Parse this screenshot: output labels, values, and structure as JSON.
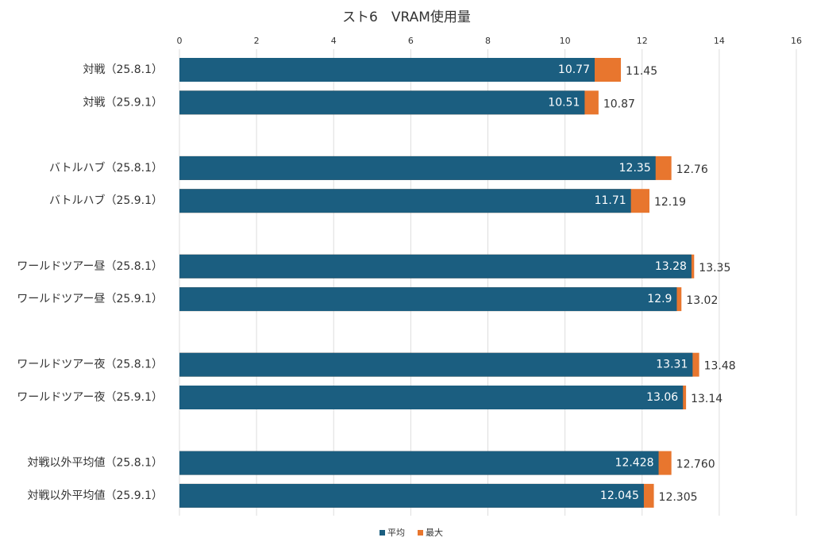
{
  "chart_data": {
    "type": "hbar-overlap",
    "title": "スト6　VRAM使用量",
    "categories": [
      "対戦（25.8.1）",
      "対戦（25.9.1）",
      null,
      "バトルハブ（25.8.1）",
      "バトルハブ（25.9.1）",
      null,
      "ワールドツアー昼（25.8.1）",
      "ワールドツアー昼（25.9.1）",
      null,
      "ワールドツアー夜（25.8.1）",
      "ワールドツアー夜（25.9.1）",
      null,
      "対戦以外平均値（25.8.1）",
      "対戦以外平均値（25.9.1）"
    ],
    "series": [
      {
        "name": "最大",
        "color": "#e8762e",
        "values": [
          11.45,
          10.87,
          null,
          12.76,
          12.19,
          null,
          13.35,
          13.02,
          null,
          13.48,
          13.14,
          null,
          12.76,
          12.305
        ],
        "value_labels": [
          "11.45",
          "10.87",
          null,
          "12.76",
          "12.19",
          null,
          "13.35",
          "13.02",
          null,
          "13.48",
          "13.14",
          null,
          "12.760",
          "12.305"
        ]
      },
      {
        "name": "平均",
        "color": "#1b5e80",
        "values": [
          10.77,
          10.51,
          null,
          12.35,
          11.71,
          null,
          13.28,
          12.9,
          null,
          13.31,
          13.06,
          null,
          12.428,
          12.045
        ],
        "value_labels": [
          "10.77",
          "10.51",
          null,
          "12.35",
          "11.71",
          null,
          "13.28",
          "12.9",
          null,
          "13.31",
          "13.06",
          null,
          "12.428",
          "12.045"
        ]
      }
    ],
    "legend_order": [
      1,
      0
    ],
    "xlim": [
      0,
      16
    ],
    "xticks": [
      0,
      2,
      4,
      6,
      8,
      10,
      12,
      14,
      16
    ],
    "grid": true
  }
}
